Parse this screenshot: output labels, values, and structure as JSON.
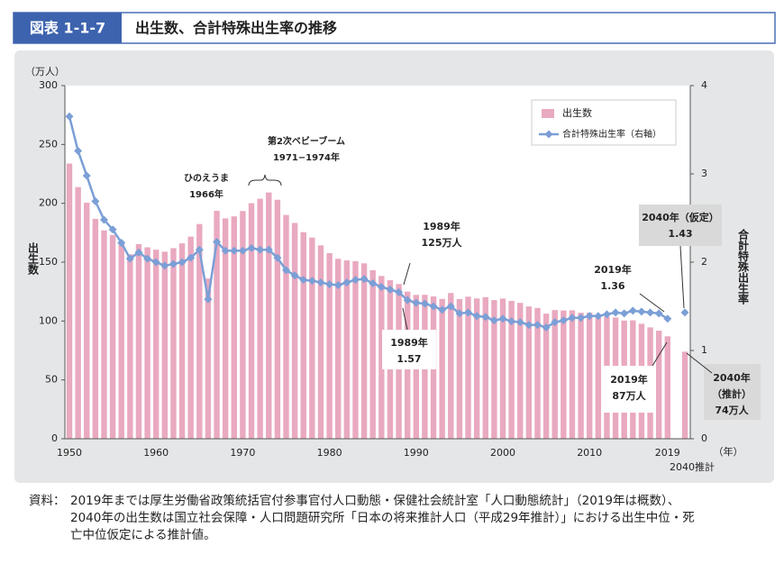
{
  "header": {
    "label": "図表 1-1-7",
    "title": "出生数、合計特殊出生率の推移"
  },
  "chart_data": {
    "type": "bar_line",
    "categories": [
      "1950",
      null,
      null,
      null,
      null,
      null,
      null,
      null,
      null,
      null,
      "1960",
      null,
      null,
      null,
      null,
      null,
      null,
      null,
      null,
      null,
      "1970",
      null,
      null,
      null,
      null,
      null,
      null,
      null,
      null,
      null,
      "1980",
      null,
      null,
      null,
      null,
      null,
      null,
      null,
      null,
      null,
      "1990",
      null,
      null,
      null,
      null,
      null,
      null,
      null,
      null,
      null,
      "2000",
      null,
      null,
      null,
      null,
      null,
      null,
      null,
      null,
      null,
      "2010",
      null,
      null,
      null,
      null,
      null,
      null,
      null,
      null,
      "2019",
      "2040推計"
    ],
    "x_unit": "（年）",
    "y_unit": "（万人）",
    "y_label": "出生数",
    "y2_label": "合計特殊出生率",
    "ylim": [
      0,
      300
    ],
    "yticks": [
      0,
      50,
      100,
      150,
      200,
      250,
      300
    ],
    "y2lim": [
      0,
      4
    ],
    "y2ticks": [
      0,
      1,
      2,
      3,
      4
    ],
    "series": [
      {
        "name": "出生数",
        "type": "bar",
        "color": "#e9a9c0",
        "values": [
          233.8,
          213.8,
          200.5,
          186.8,
          177.0,
          173.1,
          166.5,
          156.7,
          165.3,
          162.6,
          160.6,
          158.9,
          161.9,
          166.0,
          171.7,
          182.4,
          136.1,
          193.6,
          187.2,
          188.9,
          193.4,
          200.1,
          203.9,
          209.2,
          203.0,
          190.1,
          183.3,
          175.5,
          170.9,
          164.3,
          157.7,
          152.9,
          151.5,
          150.9,
          149.0,
          143.2,
          138.3,
          134.7,
          131.4,
          125,
          122.2,
          122.3,
          120.9,
          118.8,
          123.8,
          118.7,
          120.7,
          119.2,
          120.3,
          117.8,
          119.1,
          117.1,
          115.4,
          112.4,
          111.1,
          106.3,
          109.3,
          109.0,
          109.1,
          107.0,
          107.1,
          105.1,
          103.7,
          103.0,
          100.4,
          100.6,
          97.7,
          94.6,
          91.8,
          87,
          74
        ]
      },
      {
        "name": "合計特殊出生率（右軸）",
        "type": "line",
        "axis": "y2",
        "color": "#7b9fd6",
        "values": [
          3.65,
          3.26,
          2.98,
          2.69,
          2.48,
          2.37,
          2.22,
          2.04,
          2.11,
          2.04,
          2.0,
          1.96,
          1.98,
          2.0,
          2.05,
          2.14,
          1.58,
          2.23,
          2.13,
          2.13,
          2.13,
          2.16,
          2.14,
          2.14,
          2.05,
          1.91,
          1.85,
          1.8,
          1.79,
          1.77,
          1.75,
          1.74,
          1.77,
          1.8,
          1.81,
          1.76,
          1.72,
          1.69,
          1.66,
          1.57,
          1.54,
          1.53,
          1.5,
          1.46,
          1.5,
          1.42,
          1.43,
          1.39,
          1.38,
          1.34,
          1.36,
          1.33,
          1.32,
          1.29,
          1.29,
          1.26,
          1.32,
          1.34,
          1.37,
          1.37,
          1.39,
          1.39,
          1.41,
          1.43,
          1.42,
          1.45,
          1.44,
          1.43,
          1.42,
          1.36,
          1.43
        ]
      }
    ],
    "annotations": [
      {
        "lines": [
          "ひのえうま",
          "1966年"
        ]
      },
      {
        "lines": [
          "第2次ベビーブーム",
          "1971−1974年"
        ]
      },
      {
        "lines": [
          "1989年",
          "125万人"
        ]
      },
      {
        "lines": [
          "1989年",
          "1.57"
        ]
      },
      {
        "lines": [
          "2019年",
          "1.36"
        ]
      },
      {
        "lines": [
          "2019年",
          "87万人"
        ]
      },
      {
        "lines": [
          "2040年（仮定）",
          "1.43"
        ]
      },
      {
        "lines": [
          "2040年",
          "（推計）",
          "74万人"
        ]
      }
    ]
  },
  "footnote": {
    "label": "資料：",
    "lines": [
      "2019年までは厚生労働省政策統括官付参事官付人口動態・保健社会統計室「人口動態統計」（2019年は概数）、",
      "2040年の出生数は国立社会保障・人口問題研究所「日本の将来推計人口（平成29年推計）」における出生中位・死",
      "亡中位仮定による推計値。"
    ]
  }
}
